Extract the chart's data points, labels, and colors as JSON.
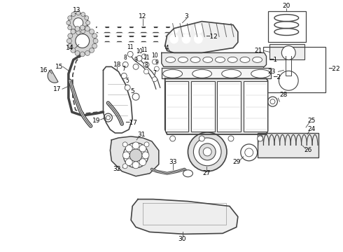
{
  "background_color": "#ffffff",
  "line_color": "#444444",
  "text_color": "#000000",
  "fig_width": 4.9,
  "fig_height": 3.6,
  "dpi": 100
}
